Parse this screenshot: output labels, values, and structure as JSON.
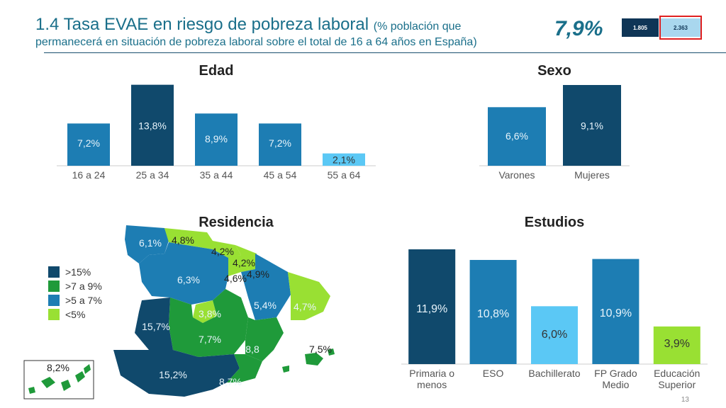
{
  "header": {
    "title_main": "1.4 Tasa EVAE en riesgo de pobreza laboral",
    "title_note": "(% población que",
    "title_sub": "permanecerá en situación de pobreza laboral sobre el total de 16 a 64 años en España)",
    "headline_value": "7,9%",
    "kpi_a": "1.805",
    "kpi_b": "2.363"
  },
  "colors": {
    "dark_blue": "#10496c",
    "mid_blue": "#1d7db3",
    "light_blue": "#5bc8f5",
    "dark_green": "#1f9a3a",
    "light_green": "#99e033",
    "axis": "#cccccc",
    "label_text": "#555555"
  },
  "legend": [
    {
      "label": ">15%",
      "color": "#10496c"
    },
    {
      "label": ">7 a 9%",
      "color": "#1f9a3a"
    },
    {
      "label": ">5 a 7%",
      "color": "#1d7db3"
    },
    {
      "label": "<5%",
      "color": "#99e033"
    }
  ],
  "chart_data": [
    {
      "type": "bar",
      "title": "Edad",
      "categories": [
        "16 a 24",
        "25 a 34",
        "35 a 44",
        "45 a 54",
        "55 a 64"
      ],
      "values": [
        7.2,
        13.8,
        8.9,
        7.2,
        2.1
      ],
      "labels": [
        "7,2%",
        "13,8%",
        "8,9%",
        "7,2%",
        "2,1%"
      ],
      "colors": [
        "#1d7db3",
        "#10496c",
        "#1d7db3",
        "#1d7db3",
        "#5bc8f5"
      ],
      "ylim": [
        0,
        14
      ]
    },
    {
      "type": "bar",
      "title": "Sexo",
      "categories": [
        "Varones",
        "Mujeres"
      ],
      "values": [
        6.6,
        9.1
      ],
      "labels": [
        "6,6%",
        "9,1%"
      ],
      "colors": [
        "#1d7db3",
        "#10496c"
      ],
      "ylim": [
        0,
        9.1
      ]
    },
    {
      "type": "bar",
      "title": "Estudios",
      "categories": [
        "Primaria o menos",
        "ESO",
        "Bachillerato",
        "FP Grado Medio",
        "Educación Superior"
      ],
      "values": [
        11.9,
        10.8,
        6.0,
        10.9,
        3.9
      ],
      "labels": [
        "11,9%",
        "10,8%",
        "6,0%",
        "10,9%",
        "3,9%"
      ],
      "colors": [
        "#10496c",
        "#1d7db3",
        "#5bc8f5",
        "#1d7db3",
        "#99e033"
      ],
      "ylim": [
        0,
        11.9
      ]
    },
    {
      "type": "map",
      "title": "Residencia",
      "regions": [
        {
          "label": "6,1%",
          "value": 6.1
        },
        {
          "label": "4,8%",
          "value": 4.8
        },
        {
          "label": "4,2%",
          "value": 4.2
        },
        {
          "label": "4,2%",
          "value": 4.2
        },
        {
          "label": "4,9%",
          "value": 4.9
        },
        {
          "label": "4,6%",
          "value": 4.6
        },
        {
          "label": "6,3%",
          "value": 6.3
        },
        {
          "label": "5,4%",
          "value": 5.4
        },
        {
          "label": "4,7%",
          "value": 4.7
        },
        {
          "label": "3,8%",
          "value": 3.8
        },
        {
          "label": "15,7%",
          "value": 15.7
        },
        {
          "label": "7,7%",
          "value": 7.7
        },
        {
          "label": "8,8",
          "value": 8.8
        },
        {
          "label": "7,5%",
          "value": 7.5
        },
        {
          "label": "15,2%",
          "value": 15.2
        },
        {
          "label": "8,7%",
          "value": 8.7
        },
        {
          "label": "8,2%",
          "value": 8.2
        }
      ]
    }
  ],
  "footer": {
    "page": "13"
  }
}
